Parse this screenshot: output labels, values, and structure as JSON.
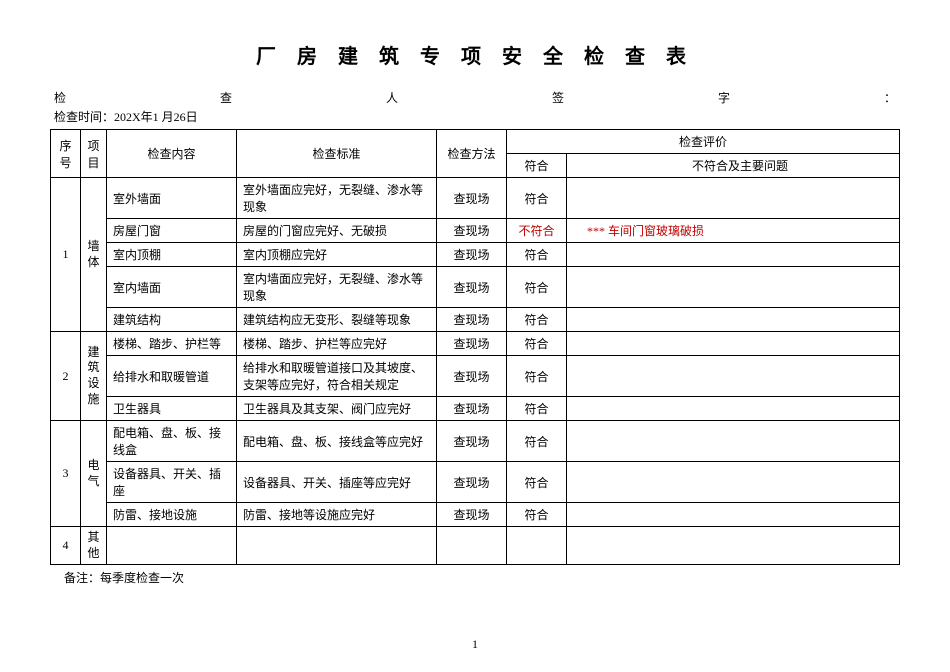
{
  "title": "厂 房 建 筑 专 项 安 全 检 查 表",
  "header_labels": {
    "inspector": "检",
    "check": "查",
    "person": "人",
    "sign": "签",
    "word": "字",
    "colon": "："
  },
  "check_time": "检查时间：202X年1 月26日",
  "table_headers": {
    "seq": "序号",
    "proj": "项目",
    "content": "检查内容",
    "standard": "检查标准",
    "method": "检查方法",
    "eval": "检查评价",
    "conform": "符合",
    "issue": "不符合及主要问题"
  },
  "groups": [
    {
      "seq": "1",
      "proj": "墙体",
      "rows": [
        {
          "content": "室外墙面",
          "standard": "室外墙面应完好，无裂缝、渗水等现象",
          "method": "查现场",
          "conform": "符合",
          "issue": ""
        },
        {
          "content": "房屋门窗",
          "standard": "房屋的门窗应完好、无破损",
          "method": "查现场",
          "conform": "不符合",
          "conform_red": true,
          "issue": "*** 车间门窗玻璃破损",
          "issue_red": true
        },
        {
          "content": "室内顶棚",
          "standard": "室内顶棚应完好",
          "method": "查现场",
          "conform": "符合",
          "issue": ""
        },
        {
          "content": "室内墙面",
          "standard": "室内墙面应完好，无裂缝、渗水等现象",
          "method": "查现场",
          "conform": "符合",
          "issue": ""
        },
        {
          "content": "建筑结构",
          "standard": "建筑结构应无变形、裂缝等现象",
          "method": "查现场",
          "conform": "符合",
          "issue": ""
        }
      ]
    },
    {
      "seq": "2",
      "proj": "建筑设施",
      "rows": [
        {
          "content": "楼梯、踏步、护栏等",
          "standard": "楼梯、踏步、护栏等应完好",
          "method": "查现场",
          "conform": "符合",
          "issue": ""
        },
        {
          "content": "给排水和取暖管道",
          "standard": "给排水和取暖管道接口及其坡度、支架等应完好，符合相关规定",
          "method": "查现场",
          "conform": "符合",
          "issue": ""
        },
        {
          "content": "卫生器具",
          "standard": "卫生器具及其支架、阀门应完好",
          "method": "查现场",
          "conform": "符合",
          "issue": ""
        }
      ]
    },
    {
      "seq": "3",
      "proj": "电气",
      "rows": [
        {
          "content": "配电箱、盘、板、接线盒",
          "standard": "配电箱、盘、板、接线盒等应完好",
          "method": "查现场",
          "conform": "符合",
          "issue": ""
        },
        {
          "content": "设备器具、开关、插座",
          "standard": "设备器具、开关、插座等应完好",
          "method": "查现场",
          "conform": "符合",
          "issue": ""
        },
        {
          "content": "防雷、接地设施",
          "standard": "防雷、接地等设施应完好",
          "method": "查现场",
          "conform": "符合",
          "issue": ""
        }
      ]
    },
    {
      "seq": "4",
      "proj": "其他",
      "rows": [
        {
          "content": "",
          "standard": "",
          "method": "",
          "conform": "",
          "issue": ""
        }
      ]
    }
  ],
  "footer_note": "备注：每季度检查一次",
  "page_num": "1"
}
